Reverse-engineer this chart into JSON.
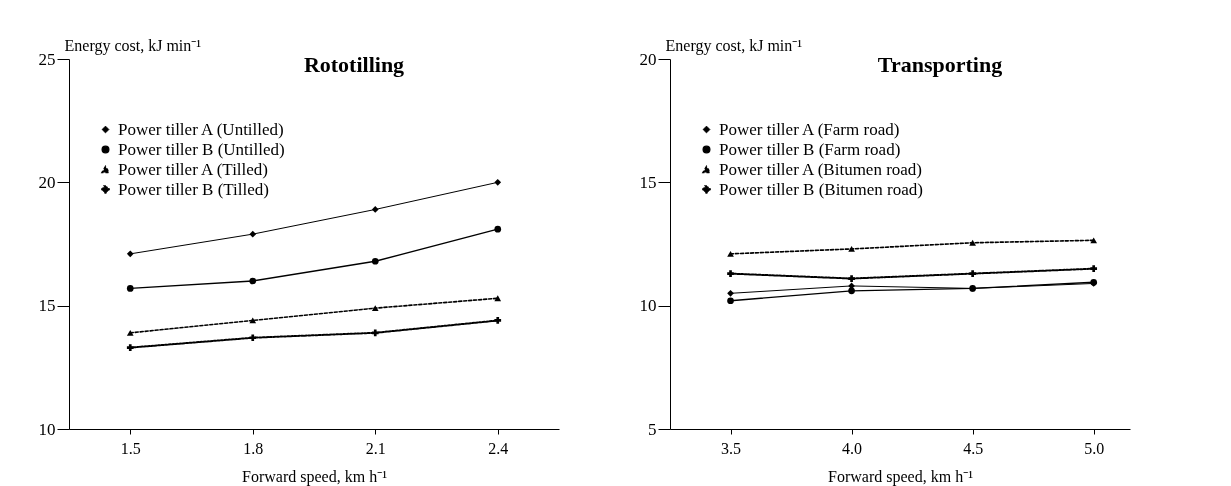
{
  "chart_data": [
    {
      "type": "line",
      "title": "Rototilling",
      "xlabel": "Forward speed, km h⁻¹",
      "ylabel": "Energy cost, kJ min⁻¹",
      "x": [
        1.5,
        1.8,
        2.1,
        2.4
      ],
      "xlim": [
        1.35,
        2.55
      ],
      "xticks": [
        {
          "value": 1.5,
          "label": "1.5"
        },
        {
          "value": 1.8,
          "label": "1.8"
        },
        {
          "value": 2.1,
          "label": "2.1"
        },
        {
          "value": 2.4,
          "label": "2.4"
        }
      ],
      "ylim": [
        10,
        25
      ],
      "yticks": [
        10,
        15,
        20,
        25
      ],
      "grid": false,
      "legend": "top left",
      "series": [
        {
          "name": "Power tiller A (Untilled)",
          "color": "#000000",
          "marker": "diamond",
          "line_style": "solid",
          "values": [
            17.1,
            17.9,
            18.9,
            20.0
          ]
        },
        {
          "name": "Power tiller B (Untilled)",
          "color": "#000000",
          "marker": "circle",
          "line_style": "solid",
          "values": [
            15.7,
            16.0,
            16.8,
            18.1
          ]
        },
        {
          "name": "Power tiller A (Tilled)",
          "color": "#000000",
          "marker": "triangle",
          "line_style": "dashed",
          "values": [
            13.9,
            14.4,
            14.9,
            15.3
          ]
        },
        {
          "name": "Power tiller B (Tilled)",
          "color": "#000000",
          "marker": "cross",
          "line_style": "dotted",
          "values": [
            13.3,
            13.7,
            13.9,
            14.4
          ]
        }
      ]
    },
    {
      "type": "line",
      "title": "Transporting",
      "xlabel": "Forward speed, km h⁻¹",
      "ylabel": "Energy cost, kJ min⁻¹",
      "x": [
        3.5,
        4.0,
        4.5,
        5.0
      ],
      "xlim": [
        3.25,
        5.15
      ],
      "xticks": [
        {
          "value": 3.5,
          "label": "3.5"
        },
        {
          "value": 4.0,
          "label": "4.0"
        },
        {
          "value": 4.5,
          "label": "4.5"
        },
        {
          "value": 5.0,
          "label": "5.0"
        }
      ],
      "ylim": [
        5,
        20
      ],
      "yticks": [
        5,
        10,
        15,
        20
      ],
      "grid": false,
      "legend": "top left",
      "series": [
        {
          "name": "Power tiller A (Farm road)",
          "color": "#000000",
          "marker": "diamond",
          "line_style": "solid",
          "values": [
            10.5,
            10.8,
            10.7,
            10.9
          ]
        },
        {
          "name": "Power tiller B (Farm road)",
          "color": "#000000",
          "marker": "circle",
          "line_style": "solid",
          "values": [
            10.2,
            10.6,
            10.7,
            10.95
          ]
        },
        {
          "name": "Power tiller A (Bitumen road)",
          "color": "#000000",
          "marker": "triangle",
          "line_style": "dashed",
          "values": [
            12.1,
            12.3,
            12.55,
            12.65
          ]
        },
        {
          "name": "Power tiller B (Bitumen road)",
          "color": "#000000",
          "marker": "cross",
          "line_style": "dotted",
          "values": [
            11.3,
            11.1,
            11.3,
            11.5
          ]
        }
      ]
    }
  ]
}
